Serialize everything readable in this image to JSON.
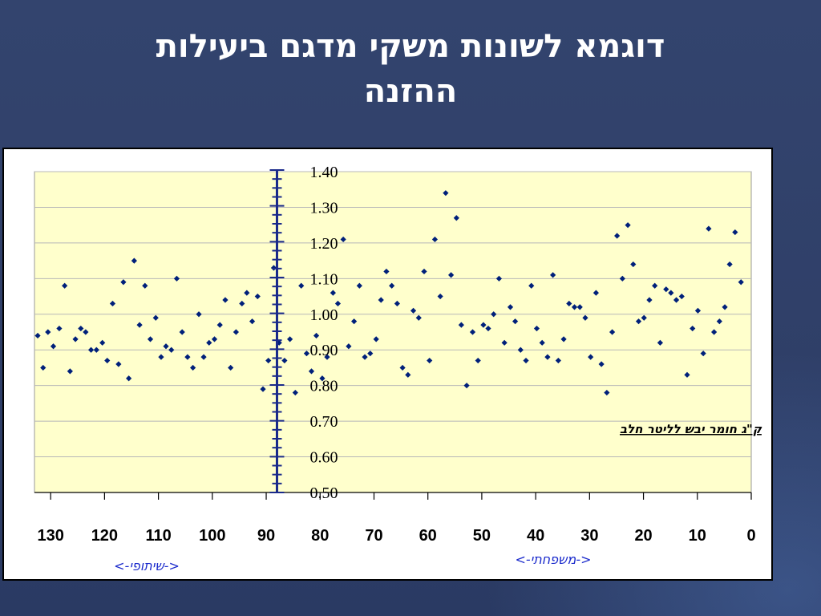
{
  "slide": {
    "title_line1": "דוגמא לשונות משקי מדגם ביעילות",
    "title_line2": "ההזנה"
  },
  "colors": {
    "background": "#33446e",
    "plot_area": "#ffffcc",
    "marker": "#00207a",
    "axis_bar": "#1a2a8a",
    "grid": "#b8b8b8"
  },
  "chart_data": {
    "type": "scatter",
    "title": "",
    "xlabel": "",
    "ylabel": "",
    "xlim": [
      0,
      133
    ],
    "ylim": [
      0.5,
      1.4
    ],
    "x_reversed": true,
    "grid": true,
    "xticks": [
      0,
      10,
      20,
      30,
      40,
      50,
      60,
      70,
      80,
      90,
      100,
      110,
      120,
      130
    ],
    "yticks": [
      0.5,
      0.6,
      0.7,
      0.8,
      0.9,
      1.0,
      1.1,
      1.2,
      1.3,
      1.4
    ],
    "vertical_marker_x": 88,
    "annotation": "ק\"ג חומר יבש לליטר חלב",
    "region_labels": [
      "<-משפחתי->",
      "<-שיתופי->"
    ],
    "series": [
      {
        "points": [
          [
            132.4,
            0.94
          ],
          [
            131.4,
            0.85
          ],
          [
            130.5,
            0.95
          ],
          [
            129.5,
            0.91
          ],
          [
            128.4,
            0.96
          ],
          [
            127.4,
            1.08
          ],
          [
            126.4,
            0.84
          ],
          [
            125.4,
            0.93
          ],
          [
            124.4,
            0.96
          ],
          [
            123.5,
            0.95
          ],
          [
            122.5,
            0.9
          ],
          [
            121.5,
            0.9
          ],
          [
            120.4,
            0.92
          ],
          [
            119.5,
            0.87
          ],
          [
            118.5,
            1.03
          ],
          [
            117.4,
            0.86
          ],
          [
            116.5,
            1.09
          ],
          [
            115.5,
            0.82
          ],
          [
            114.5,
            1.15
          ],
          [
            113.5,
            0.97
          ],
          [
            112.5,
            1.08
          ],
          [
            111.5,
            0.93
          ],
          [
            110.5,
            0.99
          ],
          [
            109.5,
            0.88
          ],
          [
            108.6,
            0.91
          ],
          [
            107.6,
            0.9
          ],
          [
            106.6,
            1.1
          ],
          [
            105.6,
            0.95
          ],
          [
            104.6,
            0.88
          ],
          [
            103.6,
            0.85
          ],
          [
            102.5,
            1.0
          ],
          [
            101.6,
            0.88
          ],
          [
            100.6,
            0.92
          ],
          [
            99.6,
            0.93
          ],
          [
            98.6,
            0.97
          ],
          [
            97.6,
            1.04
          ],
          [
            96.6,
            0.85
          ],
          [
            95.6,
            0.95
          ],
          [
            94.5,
            1.03
          ],
          [
            93.6,
            1.06
          ],
          [
            92.6,
            0.98
          ],
          [
            91.6,
            1.05
          ],
          [
            90.6,
            0.79
          ],
          [
            89.6,
            0.87
          ],
          [
            88.6,
            1.13
          ],
          [
            87.6,
            0.92
          ],
          [
            86.6,
            0.87
          ],
          [
            85.6,
            0.93
          ],
          [
            84.6,
            0.78
          ],
          [
            83.5,
            1.08
          ],
          [
            82.5,
            0.89
          ],
          [
            81.6,
            0.84
          ],
          [
            80.7,
            0.94
          ],
          [
            79.6,
            0.82
          ],
          [
            78.7,
            0.88
          ],
          [
            77.6,
            1.06
          ],
          [
            76.7,
            1.03
          ],
          [
            75.7,
            1.21
          ],
          [
            74.7,
            0.91
          ],
          [
            73.7,
            0.98
          ],
          [
            72.7,
            1.08
          ],
          [
            71.7,
            0.88
          ],
          [
            70.7,
            0.89
          ],
          [
            69.6,
            0.93
          ],
          [
            68.7,
            1.04
          ],
          [
            67.7,
            1.12
          ],
          [
            66.7,
            1.08
          ],
          [
            65.7,
            1.03
          ],
          [
            64.7,
            0.85
          ],
          [
            63.7,
            0.83
          ],
          [
            62.7,
            1.01
          ],
          [
            61.7,
            0.99
          ],
          [
            60.7,
            1.12
          ],
          [
            59.7,
            0.87
          ],
          [
            58.7,
            1.21
          ],
          [
            57.7,
            1.05
          ],
          [
            56.7,
            1.34
          ],
          [
            55.7,
            1.11
          ],
          [
            54.7,
            1.27
          ],
          [
            53.8,
            0.97
          ],
          [
            52.8,
            0.8
          ],
          [
            51.7,
            0.95
          ],
          [
            50.7,
            0.87
          ],
          [
            49.7,
            0.97
          ],
          [
            48.8,
            0.96
          ],
          [
            47.8,
            1.0
          ],
          [
            46.8,
            1.1
          ],
          [
            45.8,
            0.92
          ],
          [
            44.7,
            1.02
          ],
          [
            43.8,
            0.98
          ],
          [
            42.8,
            0.9
          ],
          [
            41.8,
            0.87
          ],
          [
            40.8,
            1.08
          ],
          [
            39.8,
            0.96
          ],
          [
            38.8,
            0.92
          ],
          [
            37.8,
            0.88
          ],
          [
            36.8,
            1.11
          ],
          [
            35.8,
            0.87
          ],
          [
            34.8,
            0.93
          ],
          [
            33.8,
            1.03
          ],
          [
            32.8,
            1.02
          ],
          [
            31.8,
            1.02
          ],
          [
            30.8,
            0.99
          ],
          [
            29.8,
            0.88
          ],
          [
            28.8,
            1.06
          ],
          [
            27.8,
            0.86
          ],
          [
            26.8,
            0.78
          ],
          [
            25.8,
            0.95
          ],
          [
            24.9,
            1.22
          ],
          [
            23.9,
            1.1
          ],
          [
            22.9,
            1.25
          ],
          [
            21.9,
            1.14
          ],
          [
            20.9,
            0.98
          ],
          [
            19.9,
            0.99
          ],
          [
            18.9,
            1.04
          ],
          [
            17.9,
            1.08
          ],
          [
            16.9,
            0.92
          ],
          [
            15.8,
            1.07
          ],
          [
            14.9,
            1.06
          ],
          [
            13.9,
            1.04
          ],
          [
            12.9,
            1.05
          ],
          [
            11.9,
            0.83
          ],
          [
            10.9,
            0.96
          ],
          [
            9.9,
            1.01
          ],
          [
            8.9,
            0.89
          ],
          [
            7.9,
            1.24
          ],
          [
            6.9,
            0.95
          ],
          [
            5.9,
            0.98
          ],
          [
            4.9,
            1.02
          ],
          [
            4.0,
            1.14
          ],
          [
            3.0,
            1.23
          ],
          [
            1.9,
            1.09
          ]
        ]
      }
    ]
  }
}
